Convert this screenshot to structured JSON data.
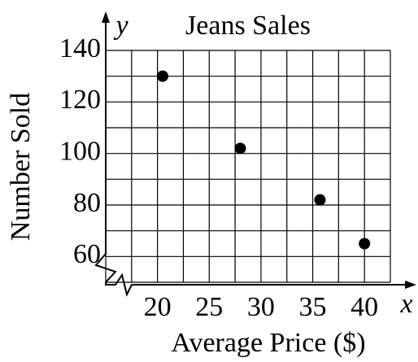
{
  "chart_data": {
    "type": "scatter",
    "title": "Jeans Sales",
    "xlabel": "Average Price ($)",
    "ylabel": "Number Sold",
    "x_axis_symbol": "x",
    "y_axis_symbol": "y",
    "x": [
      20.5,
      28,
      35.7,
      40
    ],
    "values": [
      130,
      102,
      82,
      65
    ],
    "color": "#000000",
    "xlim": [
      15,
      42.5
    ],
    "ylim": [
      50,
      140
    ],
    "xticks": [
      20,
      25,
      30,
      35,
      40
    ],
    "yticks": [
      60,
      80,
      100,
      120,
      140
    ],
    "xgrid": [
      15,
      17.5,
      20,
      22.5,
      25,
      27.5,
      30,
      32.5,
      35,
      37.5,
      40,
      42.5
    ],
    "ygrid": [
      50,
      60,
      70,
      80,
      90,
      100,
      110,
      120,
      130,
      140
    ],
    "grid": true
  }
}
